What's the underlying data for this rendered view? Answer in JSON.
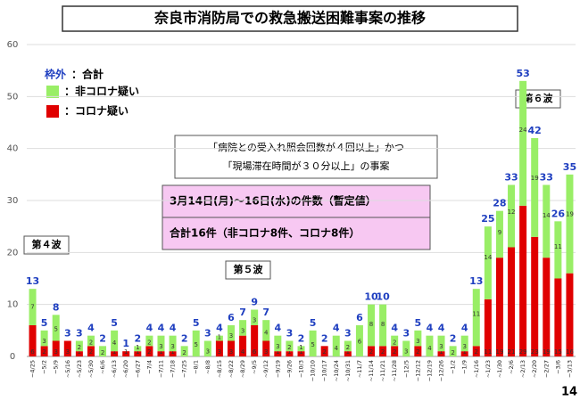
{
  "chart_data": {
    "type": "stacked_bar",
    "title": "奈良市消防局での救急搬送困難事案の推移",
    "legend_total": [
      "枠外",
      "：合計"
    ],
    "note": [
      "「病院との受入れ照会回数が４回以上」かつ",
      "「現場滞在時間が３０分以上」の事案"
    ],
    "summary": [
      "3月14日(月)〜16日(水)の件数（暫定値）",
      "合計16件（非コロナ8件、コロナ8件）"
    ],
    "waves": [
      "第４波",
      "第５波",
      "第６波"
    ],
    "categories": [
      "~4/25",
      "~5/2",
      "~5/9",
      "~5/16",
      "~5/23",
      "~5/30",
      "~6/6",
      "~6/13",
      "~6/20",
      "~6/27",
      "~7/4",
      "~7/11",
      "~7/18",
      "~7/25",
      "~8/1",
      "~8/8",
      "~8/15",
      "~8/22",
      "~8/29",
      "~9/5",
      "~9/12",
      "~9/19",
      "~9/26",
      "~10/3",
      "~10/10",
      "~10/17",
      "~10/24",
      "~10/31",
      "~11/7",
      "~11/14",
      "~11/21",
      "~11/28",
      "~12/5",
      "~12/12",
      "~12/19",
      "~12/26",
      "~1/2",
      "~1/9",
      "~1/16",
      "~1/23",
      "~1/30",
      "~2/6",
      "~2/13",
      "~2/20",
      "~2/27",
      "~3/6",
      "~3/13"
    ],
    "series": [
      {
        "name": "：コロナ疑い",
        "color": "#e00000",
        "values": [
          6,
          2,
          3,
          3,
          1,
          2,
          0,
          1,
          1,
          1,
          2,
          1,
          1,
          0,
          0,
          0,
          3,
          3,
          4,
          6,
          3,
          1,
          1,
          1,
          0,
          2,
          0,
          1,
          0,
          2,
          2,
          2,
          0,
          2,
          0,
          1,
          0,
          1,
          2,
          11,
          19,
          21,
          29,
          23,
          19,
          15,
          16
        ]
      },
      {
        "name": "：非コロナ疑い",
        "color": "#99ee66",
        "values": [
          7,
          3,
          5,
          0,
          2,
          2,
          2,
          4,
          0,
          1,
          2,
          3,
          3,
          2,
          5,
          3,
          1,
          3,
          3,
          3,
          4,
          3,
          2,
          1,
          5,
          0,
          4,
          2,
          6,
          8,
          8,
          2,
          3,
          3,
          4,
          3,
          2,
          3,
          11,
          14,
          9,
          12,
          24,
          19,
          14,
          11,
          19
        ]
      }
    ],
    "totals": [
      13,
      5,
      8,
      3,
      3,
      4,
      2,
      5,
      1,
      2,
      4,
      4,
      4,
      2,
      5,
      3,
      4,
      6,
      7,
      9,
      7,
      4,
      3,
      2,
      5,
      2,
      4,
      3,
      6,
      10,
      10,
      4,
      3,
      5,
      4,
      4,
      2,
      4,
      13,
      25,
      28,
      33,
      53,
      42,
      33,
      26,
      35
    ],
    "ylim": [
      0,
      60
    ],
    "yticks": [
      0,
      10,
      20,
      30,
      40,
      50,
      60
    ]
  },
  "page_number": "14"
}
